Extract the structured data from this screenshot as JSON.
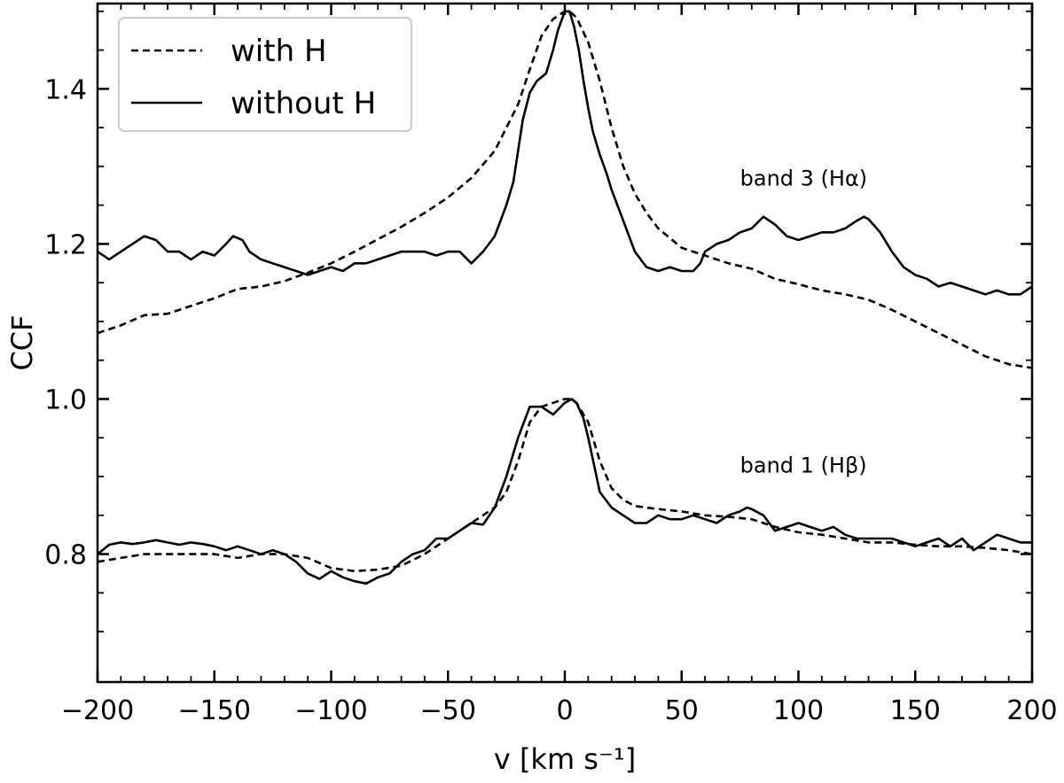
{
  "chart_data": {
    "type": "line",
    "xlabel": "v [km s⁻¹]",
    "ylabel": "CCF",
    "xlim": [
      -200,
      200
    ],
    "ylim": [
      0.635,
      1.51
    ],
    "x_ticks": [
      -200,
      -150,
      -100,
      -50,
      0,
      50,
      100,
      150,
      200
    ],
    "x_tick_labels": [
      "−200",
      "−150",
      "−100",
      "−50",
      "0",
      "50",
      "100",
      "150",
      "200"
    ],
    "y_ticks": [
      0.8,
      1.0,
      1.2,
      1.4
    ],
    "y_tick_labels": [
      "0.8",
      "1.0",
      "1.2",
      "1.4"
    ],
    "grid": false,
    "legend_position": "top-left",
    "legend": [
      {
        "label": "with H",
        "style": "dashed"
      },
      {
        "label": "without H",
        "style": "solid"
      }
    ],
    "annotations": [
      {
        "text": "band 3 (Hα)",
        "x": 75,
        "y": 1.275
      },
      {
        "text": "band 1 (Hβ)",
        "x": 75,
        "y": 0.905
      }
    ],
    "series": [
      {
        "legend_label": "with H",
        "band": "band 3 (Hα)",
        "style": "dashed",
        "x": [
          -200,
          -190,
          -180,
          -170,
          -160,
          -150,
          -140,
          -130,
          -120,
          -110,
          -100,
          -90,
          -80,
          -70,
          -60,
          -50,
          -40,
          -30,
          -20,
          -15,
          -10,
          -5,
          0,
          2,
          5,
          10,
          15,
          20,
          25,
          30,
          35,
          40,
          50,
          60,
          70,
          80,
          90,
          100,
          110,
          120,
          130,
          140,
          150,
          160,
          170,
          180,
          190,
          200
        ],
        "y": [
          1.085,
          1.095,
          1.108,
          1.11,
          1.12,
          1.13,
          1.142,
          1.145,
          1.152,
          1.163,
          1.175,
          1.19,
          1.206,
          1.222,
          1.24,
          1.26,
          1.285,
          1.32,
          1.38,
          1.425,
          1.468,
          1.49,
          1.5,
          1.5,
          1.492,
          1.46,
          1.41,
          1.35,
          1.3,
          1.265,
          1.24,
          1.22,
          1.195,
          1.185,
          1.175,
          1.168,
          1.155,
          1.148,
          1.14,
          1.135,
          1.128,
          1.115,
          1.1,
          1.085,
          1.07,
          1.055,
          1.045,
          1.04
        ]
      },
      {
        "legend_label": "without H",
        "band": "band 3 (Hα)",
        "style": "solid",
        "x": [
          -200,
          -195,
          -190,
          -185,
          -180,
          -175,
          -170,
          -165,
          -160,
          -155,
          -150,
          -145,
          -142,
          -138,
          -135,
          -130,
          -125,
          -120,
          -115,
          -110,
          -105,
          -100,
          -95,
          -90,
          -85,
          -80,
          -75,
          -70,
          -65,
          -60,
          -55,
          -50,
          -45,
          -40,
          -35,
          -30,
          -25,
          -22,
          -20,
          -18,
          -15,
          -12,
          -10,
          -8,
          -5,
          -3,
          0,
          2,
          4,
          6,
          8,
          10,
          12,
          15,
          18,
          20,
          25,
          30,
          35,
          40,
          45,
          50,
          55,
          58,
          60,
          65,
          70,
          75,
          80,
          85,
          90,
          95,
          100,
          105,
          110,
          115,
          120,
          125,
          128,
          130,
          135,
          140,
          145,
          150,
          155,
          160,
          165,
          170,
          175,
          180,
          185,
          190,
          195,
          200
        ],
        "y": [
          1.19,
          1.18,
          1.19,
          1.2,
          1.21,
          1.205,
          1.19,
          1.19,
          1.18,
          1.19,
          1.185,
          1.2,
          1.21,
          1.205,
          1.19,
          1.18,
          1.175,
          1.17,
          1.165,
          1.16,
          1.165,
          1.17,
          1.165,
          1.175,
          1.175,
          1.18,
          1.185,
          1.19,
          1.19,
          1.19,
          1.185,
          1.19,
          1.19,
          1.175,
          1.19,
          1.21,
          1.25,
          1.28,
          1.32,
          1.36,
          1.395,
          1.41,
          1.415,
          1.42,
          1.45,
          1.475,
          1.5,
          1.5,
          1.48,
          1.45,
          1.41,
          1.375,
          1.345,
          1.315,
          1.29,
          1.27,
          1.23,
          1.19,
          1.17,
          1.165,
          1.17,
          1.165,
          1.165,
          1.175,
          1.19,
          1.2,
          1.205,
          1.215,
          1.22,
          1.235,
          1.225,
          1.21,
          1.205,
          1.21,
          1.215,
          1.215,
          1.22,
          1.23,
          1.235,
          1.232,
          1.215,
          1.19,
          1.17,
          1.16,
          1.155,
          1.145,
          1.15,
          1.145,
          1.14,
          1.135,
          1.14,
          1.135,
          1.135,
          1.145
        ]
      },
      {
        "legend_label": "with H",
        "band": "band 1 (Hβ)",
        "style": "dashed",
        "x": [
          -200,
          -190,
          -180,
          -170,
          -160,
          -150,
          -140,
          -130,
          -120,
          -110,
          -100,
          -90,
          -80,
          -70,
          -60,
          -50,
          -40,
          -30,
          -25,
          -20,
          -15,
          -10,
          -5,
          0,
          2,
          5,
          10,
          15,
          20,
          25,
          30,
          40,
          50,
          60,
          70,
          80,
          90,
          100,
          110,
          120,
          130,
          140,
          150,
          160,
          170,
          180,
          190,
          200
        ],
        "y": [
          0.79,
          0.795,
          0.8,
          0.8,
          0.8,
          0.8,
          0.795,
          0.8,
          0.8,
          0.795,
          0.782,
          0.778,
          0.78,
          0.785,
          0.8,
          0.82,
          0.84,
          0.86,
          0.88,
          0.92,
          0.97,
          0.99,
          0.995,
          1.0,
          1.0,
          0.995,
          0.97,
          0.92,
          0.885,
          0.87,
          0.862,
          0.858,
          0.855,
          0.85,
          0.848,
          0.845,
          0.835,
          0.828,
          0.825,
          0.82,
          0.815,
          0.815,
          0.812,
          0.81,
          0.81,
          0.808,
          0.805,
          0.8
        ]
      },
      {
        "legend_label": "without H",
        "band": "band 1 (Hβ)",
        "style": "solid",
        "x": [
          -200,
          -195,
          -190,
          -185,
          -180,
          -175,
          -170,
          -165,
          -160,
          -155,
          -150,
          -145,
          -140,
          -135,
          -130,
          -125,
          -120,
          -115,
          -110,
          -105,
          -100,
          -95,
          -90,
          -85,
          -80,
          -75,
          -70,
          -65,
          -60,
          -55,
          -50,
          -45,
          -40,
          -35,
          -30,
          -25,
          -20,
          -15,
          -10,
          -5,
          0,
          3,
          5,
          8,
          10,
          15,
          20,
          25,
          30,
          35,
          40,
          45,
          50,
          55,
          60,
          65,
          70,
          75,
          78,
          80,
          85,
          90,
          95,
          100,
          105,
          110,
          115,
          120,
          125,
          130,
          135,
          140,
          145,
          150,
          155,
          160,
          165,
          170,
          175,
          180,
          185,
          190,
          195,
          200
        ],
        "y": [
          0.8,
          0.812,
          0.815,
          0.813,
          0.815,
          0.818,
          0.815,
          0.812,
          0.815,
          0.813,
          0.81,
          0.805,
          0.81,
          0.805,
          0.8,
          0.805,
          0.8,
          0.79,
          0.775,
          0.768,
          0.778,
          0.77,
          0.765,
          0.762,
          0.77,
          0.775,
          0.79,
          0.8,
          0.805,
          0.82,
          0.82,
          0.83,
          0.84,
          0.838,
          0.86,
          0.9,
          0.95,
          0.99,
          0.99,
          0.98,
          0.995,
          1.0,
          0.995,
          0.975,
          0.95,
          0.88,
          0.86,
          0.85,
          0.84,
          0.84,
          0.85,
          0.845,
          0.845,
          0.85,
          0.845,
          0.84,
          0.85,
          0.855,
          0.86,
          0.858,
          0.85,
          0.83,
          0.835,
          0.84,
          0.835,
          0.83,
          0.835,
          0.825,
          0.82,
          0.82,
          0.82,
          0.82,
          0.815,
          0.81,
          0.815,
          0.82,
          0.81,
          0.82,
          0.805,
          0.815,
          0.825,
          0.82,
          0.815,
          0.815
        ]
      }
    ]
  }
}
